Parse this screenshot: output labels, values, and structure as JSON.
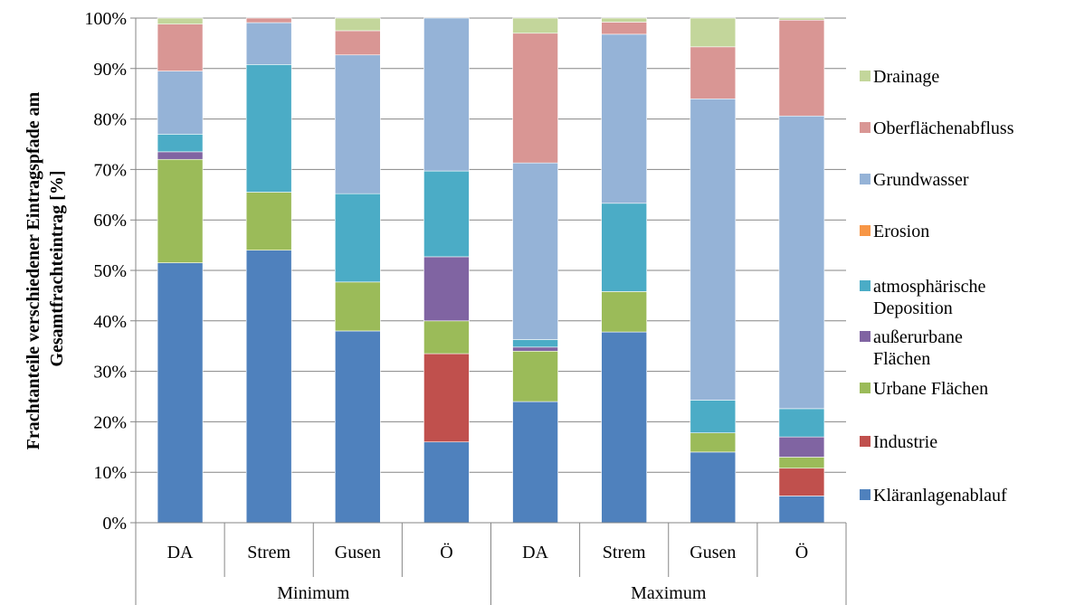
{
  "chart_data": {
    "type": "bar",
    "stacked": true,
    "ylabel": "Frachtanteile verschiedener Eintragspfade am Gesamtfrachteintrag [%]",
    "ylim": [
      0,
      100
    ],
    "yticks": [
      "0%",
      "10%",
      "20%",
      "30%",
      "40%",
      "50%",
      "60%",
      "70%",
      "80%",
      "90%",
      "100%"
    ],
    "grid": true,
    "legend_position": "right",
    "categories": [
      "DA",
      "Strem",
      "Gusen",
      "Ö",
      "DA",
      "Strem",
      "Gusen",
      "Ö"
    ],
    "groups": [
      {
        "label": "Minimum",
        "span": 4
      },
      {
        "label": "Maximum",
        "span": 4
      }
    ],
    "series": [
      {
        "name": "Kläranlagenablauf",
        "color": "#4F81BD",
        "values": [
          51.5,
          54.0,
          38.0,
          16.0,
          24.0,
          37.8,
          14.0,
          5.3
        ]
      },
      {
        "name": "Industrie",
        "color": "#C0504D",
        "values": [
          0,
          0,
          0,
          17.5,
          0,
          0,
          0,
          5.5
        ]
      },
      {
        "name": "Urbane Flächen",
        "color": "#9BBB59",
        "values": [
          20.5,
          11.5,
          9.7,
          6.5,
          10.0,
          8.0,
          3.8,
          2.2
        ]
      },
      {
        "name": "außerurbane Flächen",
        "color": "#8064A2",
        "values": [
          1.5,
          0,
          0,
          12.7,
          0.8,
          0,
          0,
          4.0
        ]
      },
      {
        "name": "atmosphärische Deposition",
        "color": "#4BACC6",
        "values": [
          3.5,
          25.3,
          17.5,
          17.0,
          1.5,
          17.5,
          6.5,
          5.6
        ]
      },
      {
        "name": "Erosion",
        "color": "#F79646",
        "values": [
          0,
          0,
          0,
          0,
          0,
          0,
          0,
          0
        ]
      },
      {
        "name": "Grundwasser",
        "color": "#95B3D7",
        "values": [
          12.5,
          8.3,
          27.5,
          30.3,
          35.0,
          33.5,
          59.7,
          58.0
        ]
      },
      {
        "name": "Oberflächenabfluss",
        "color": "#D99694",
        "values": [
          9.3,
          0.9,
          4.8,
          0,
          25.7,
          2.4,
          10.3,
          19.0
        ]
      },
      {
        "name": "Drainage",
        "color": "#C3D69B",
        "values": [
          1.2,
          0,
          2.5,
          0,
          3.0,
          0.8,
          5.7,
          0.4
        ]
      }
    ],
    "legend_order": [
      "Drainage",
      "Oberflächenabfluss",
      "Grundwasser",
      "Erosion",
      "atmosphärische Deposition",
      "außerurbane Flächen",
      "Urbane Flächen",
      "Industrie",
      "Kläranlagenablauf"
    ]
  }
}
